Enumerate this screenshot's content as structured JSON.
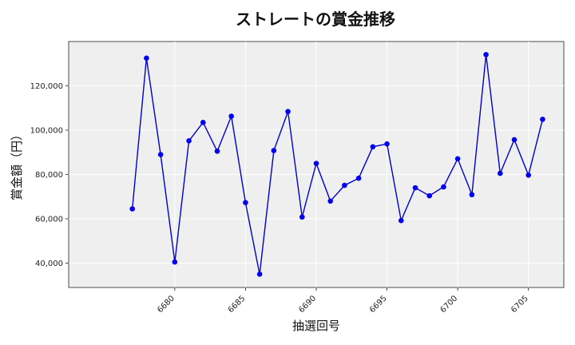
{
  "chart_data": {
    "type": "line",
    "title": "ストレートの賞金推移",
    "xlabel": "抽選回号",
    "ylabel": "賞金額（円）",
    "x": [
      6677,
      6678,
      6679,
      6680,
      6681,
      6682,
      6683,
      6684,
      6685,
      6686,
      6687,
      6688,
      6689,
      6690,
      6691,
      6692,
      6693,
      6694,
      6695,
      6696,
      6697,
      6698,
      6699,
      6700,
      6701,
      6702,
      6703,
      6704,
      6705,
      6706
    ],
    "y": [
      64500,
      132500,
      89000,
      40500,
      95200,
      103500,
      90500,
      106300,
      67300,
      35000,
      90800,
      108400,
      60800,
      85000,
      68000,
      75100,
      78300,
      92500,
      93800,
      59200,
      74000,
      70400,
      74400,
      87100,
      70900,
      134100,
      80500,
      95700,
      79700,
      104900
    ],
    "xlim": [
      6672.5,
      6707.5
    ],
    "ylim": [
      29000,
      140000
    ],
    "xticks": [
      6680,
      6685,
      6690,
      6695,
      6700,
      6705
    ],
    "xtick_labels": [
      "6680",
      "6685",
      "6690",
      "6695",
      "6700",
      "6705"
    ],
    "yticks": [
      40000,
      60000,
      80000,
      100000,
      120000
    ],
    "ytick_labels": [
      "40,000",
      "60,000",
      "80,000",
      "100,000",
      "120,000"
    ],
    "grid": true,
    "legend": "none",
    "line_color": "#0000cc",
    "marker_color": "#0000ee",
    "plot_background": "#efefef"
  }
}
